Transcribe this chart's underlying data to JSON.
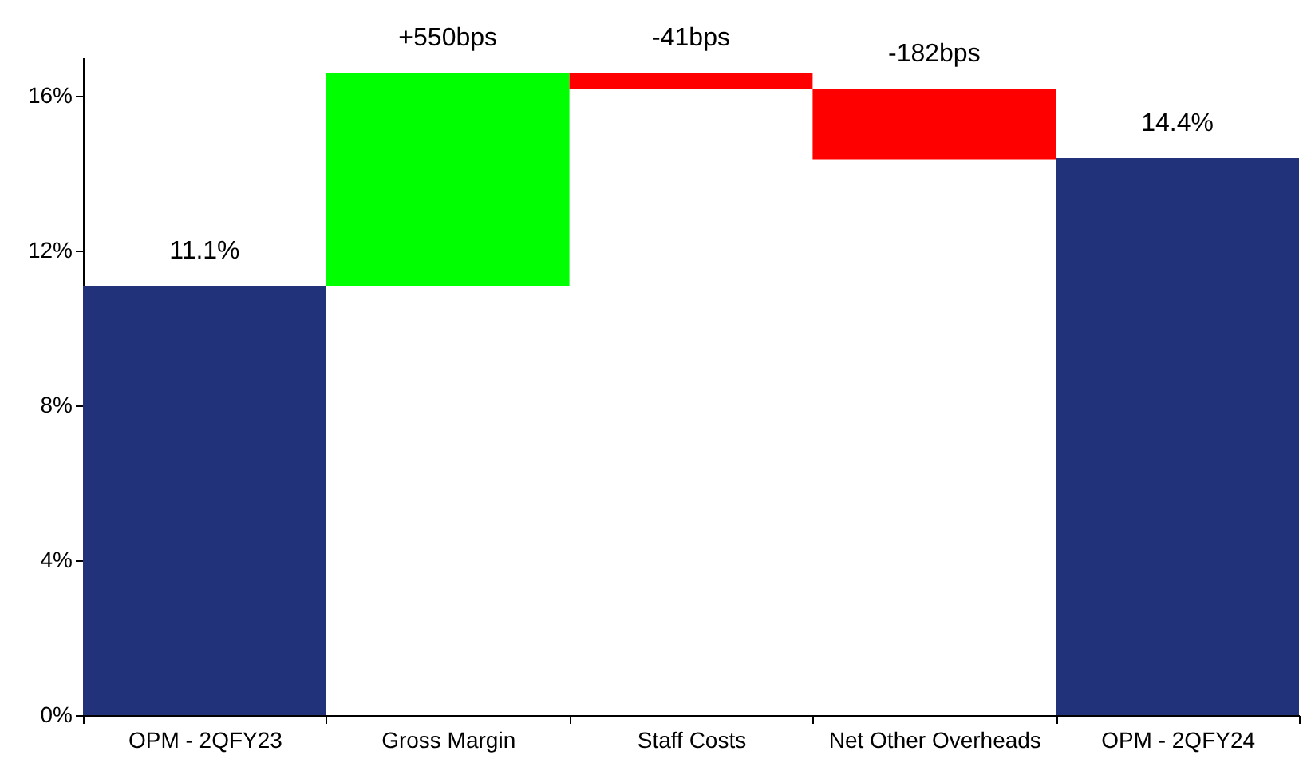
{
  "chart_data": {
    "type": "bar",
    "categories": [
      "OPM - 2QFY23",
      "Gross Margin",
      "Staff Costs",
      "Net Other Overheads",
      "OPM - 2QFY24"
    ],
    "values": [
      11.1,
      5.5,
      -0.41,
      -1.82,
      14.4
    ],
    "base": [
      0,
      11.1,
      16.6,
      16.19,
      0
    ],
    "colors": [
      "#21317a",
      "#00ff00",
      "#ff0000",
      "#ff0000",
      "#21317a"
    ],
    "value_labels": [
      "11.1%",
      null,
      null,
      null,
      "14.4%"
    ],
    "annotations": [
      {
        "text": "+550bps",
        "x": "Gross Margin",
        "y": 16.6
      },
      {
        "text": "-41bps",
        "x": "Staff Costs",
        "y": 16.6
      },
      {
        "text": "-182bps",
        "x": "Net Other Overheads",
        "y": 16.19
      }
    ],
    "ylim": [
      0,
      17
    ],
    "yticks": [
      {
        "value": 0,
        "label": "0%"
      },
      {
        "value": 4,
        "label": "4%"
      },
      {
        "value": 8,
        "label": "8%"
      },
      {
        "value": 12,
        "label": "12%"
      },
      {
        "value": 16,
        "label": "16%"
      }
    ],
    "grid": false
  }
}
